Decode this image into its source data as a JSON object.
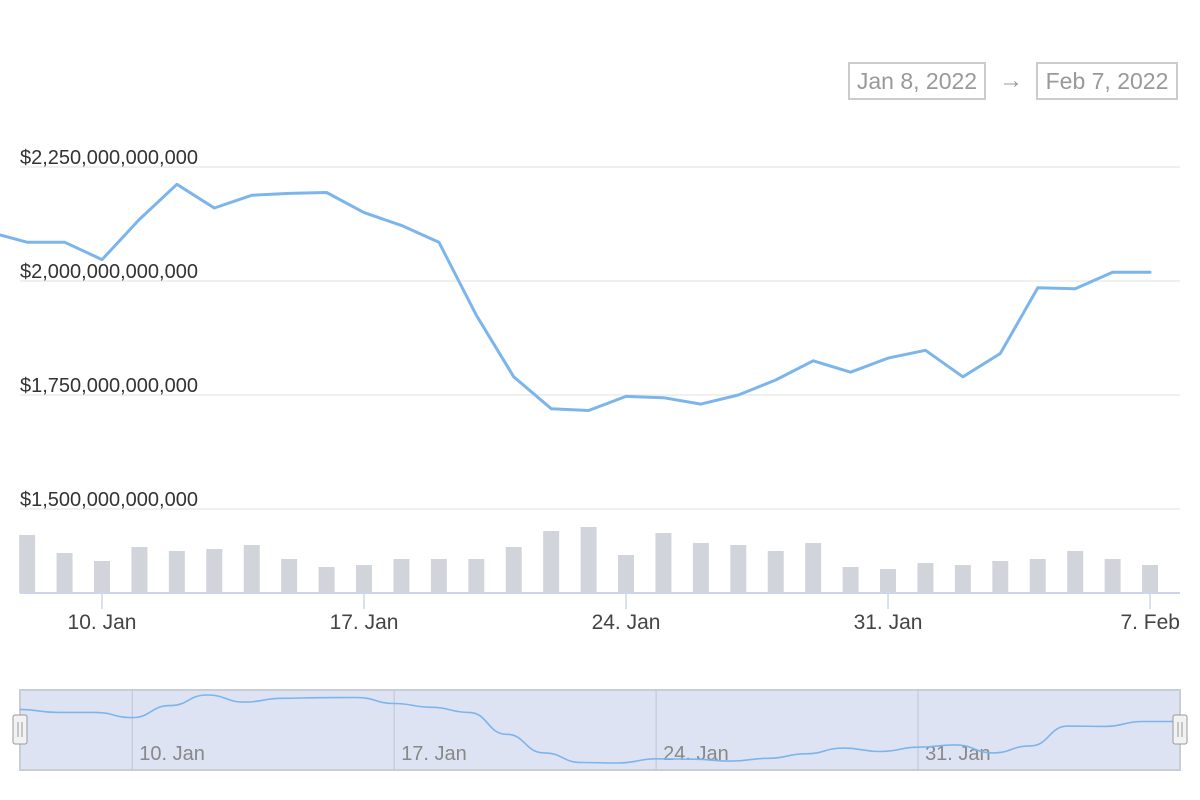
{
  "range_selector": {
    "from": "Jan 8, 2022",
    "arrow": "→",
    "to": "Feb 7, 2022"
  },
  "colors": {
    "line": "#7cb5ec",
    "volume": "#d1d5db",
    "grid": "#ececec",
    "axis": "#ccd6eb",
    "navigator_fill": "#dde3f2"
  },
  "chart_data": {
    "type": "line",
    "title": "",
    "xlabel": "",
    "ylabel": "",
    "ylim": [
      1500000000000,
      2250000000000
    ],
    "y_ticks": [
      {
        "value": 2250000000000,
        "label": "$2,250,000,000,000"
      },
      {
        "value": 2000000000000,
        "label": "$2,000,000,000,000"
      },
      {
        "value": 1750000000000,
        "label": "$1,750,000,000,000"
      },
      {
        "value": 1500000000000,
        "label": "$1,500,000,000,000"
      }
    ],
    "x_ticks": [
      {
        "x": "2022-01-10",
        "label": "10. Jan"
      },
      {
        "x": "2022-01-17",
        "label": "17. Jan"
      },
      {
        "x": "2022-01-24",
        "label": "24. Jan"
      },
      {
        "x": "2022-01-31",
        "label": "31. Jan"
      },
      {
        "x": "2022-02-07",
        "label": "7. Feb"
      }
    ],
    "series": [
      {
        "x": [
          "2022-01-07",
          "2022-01-08",
          "2022-01-09",
          "2022-01-10",
          "2022-01-11",
          "2022-01-12",
          "2022-01-13",
          "2022-01-14",
          "2022-01-15",
          "2022-01-16",
          "2022-01-17",
          "2022-01-18",
          "2022-01-19",
          "2022-01-20",
          "2022-01-21",
          "2022-01-22",
          "2022-01-23",
          "2022-01-24",
          "2022-01-25",
          "2022-01-26",
          "2022-01-27",
          "2022-01-28",
          "2022-01-29",
          "2022-01-30",
          "2022-01-31",
          "2022-02-01",
          "2022-02-02",
          "2022-02-03",
          "2022-02-04",
          "2022-02-05",
          "2022-02-06",
          "2022-02-07"
        ],
        "values": [
          2107000000000,
          2085000000000,
          2085000000000,
          2047000000000,
          2135000000000,
          2212000000000,
          2160000000000,
          2188000000000,
          2192000000000,
          2194000000000,
          2150000000000,
          2122000000000,
          2085000000000,
          1925000000000,
          1790000000000,
          1720000000000,
          1716000000000,
          1747000000000,
          1744000000000,
          1730000000000,
          1750000000000,
          1783000000000,
          1825000000000,
          1800000000000,
          1831000000000,
          1848000000000,
          1790000000000,
          1841000000000,
          1985000000000,
          1983000000000,
          2019000000000,
          2019000000000
        ]
      }
    ],
    "volume": {
      "x": [
        "2022-01-08",
        "2022-01-09",
        "2022-01-10",
        "2022-01-11",
        "2022-01-12",
        "2022-01-13",
        "2022-01-14",
        "2022-01-15",
        "2022-01-16",
        "2022-01-17",
        "2022-01-18",
        "2022-01-19",
        "2022-01-20",
        "2022-01-21",
        "2022-01-22",
        "2022-01-23",
        "2022-01-24",
        "2022-01-25",
        "2022-01-26",
        "2022-01-27",
        "2022-01-28",
        "2022-01-29",
        "2022-01-30",
        "2022-01-31",
        "2022-02-01",
        "2022-02-02",
        "2022-02-03",
        "2022-02-04",
        "2022-02-05",
        "2022-02-06",
        "2022-02-07"
      ],
      "values": [
        58,
        40,
        32,
        46,
        42,
        44,
        48,
        34,
        26,
        28,
        34,
        34,
        34,
        46,
        62,
        66,
        38,
        60,
        50,
        48,
        42,
        50,
        26,
        24,
        30,
        28,
        32,
        34,
        42,
        34,
        28
      ]
    },
    "navigator": {
      "x_ticks": [
        {
          "x": "2022-01-10",
          "label": "10. Jan"
        },
        {
          "x": "2022-01-17",
          "label": "17. Jan"
        },
        {
          "x": "2022-01-24",
          "label": "24. Jan"
        },
        {
          "x": "2022-01-31",
          "label": "31. Jan"
        }
      ]
    }
  }
}
